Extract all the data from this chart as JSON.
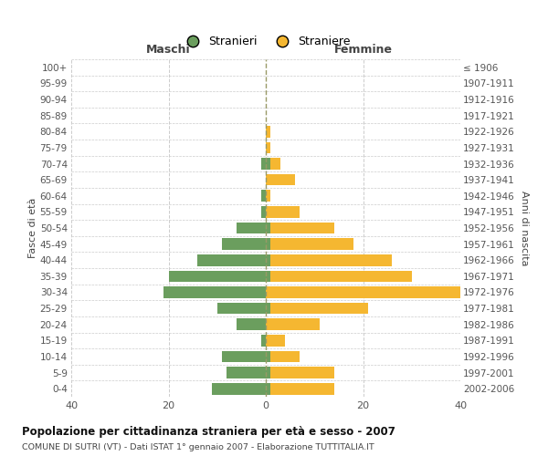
{
  "age_groups": [
    "100+",
    "95-99",
    "90-94",
    "85-89",
    "80-84",
    "75-79",
    "70-74",
    "65-69",
    "60-64",
    "55-59",
    "50-54",
    "45-49",
    "40-44",
    "35-39",
    "30-34",
    "25-29",
    "20-24",
    "15-19",
    "10-14",
    "5-9",
    "0-4"
  ],
  "birth_years": [
    "≤ 1906",
    "1907-1911",
    "1912-1916",
    "1917-1921",
    "1922-1926",
    "1927-1931",
    "1932-1936",
    "1937-1941",
    "1942-1946",
    "1947-1951",
    "1952-1956",
    "1957-1961",
    "1962-1966",
    "1967-1971",
    "1972-1976",
    "1977-1981",
    "1982-1986",
    "1987-1991",
    "1992-1996",
    "1997-2001",
    "2002-2006"
  ],
  "maschi": [
    0,
    0,
    0,
    0,
    0,
    0,
    1,
    0,
    1,
    1,
    6,
    9,
    14,
    20,
    21,
    10,
    6,
    1,
    9,
    8,
    11
  ],
  "femmine": [
    0,
    0,
    0,
    0,
    1,
    1,
    3,
    6,
    1,
    7,
    14,
    18,
    26,
    30,
    40,
    21,
    11,
    4,
    7,
    14,
    14
  ],
  "femmine_green": [
    0,
    0,
    0,
    0,
    0,
    0,
    1,
    0,
    0,
    0,
    1,
    1,
    1,
    1,
    0,
    1,
    0,
    0,
    1,
    1,
    1
  ],
  "color_green": "#6b9e5e",
  "color_orange": "#f5b731",
  "title": "Popolazione per cittadinanza straniera per età e sesso - 2007",
  "subtitle": "COMUNE DI SUTRI (VT) - Dati ISTAT 1° gennaio 2007 - Elaborazione TUTTITALIA.IT",
  "ylabel_left": "Fasce di età",
  "ylabel_right": "Anni di nascita",
  "label_maschi": "Maschi",
  "label_femmine": "Femmine",
  "legend_stranieri": "Stranieri",
  "legend_straniere": "Straniere",
  "xlim": 40,
  "bg_color": "#ffffff",
  "grid_color": "#cccccc"
}
